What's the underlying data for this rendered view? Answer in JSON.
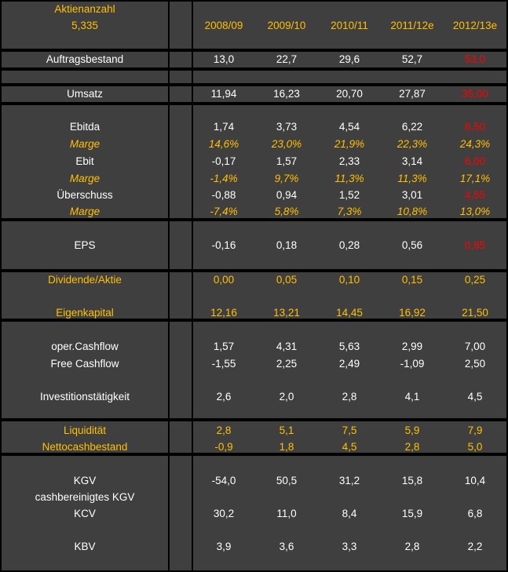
{
  "header": {
    "label": "Aktienanzahl",
    "shares": "5,335",
    "years": [
      "2008/09",
      "2009/10",
      "2010/11",
      "2011/12e",
      "2012/13e"
    ],
    "color": "#ffc000"
  },
  "rows": [
    {
      "label": "Auftragsbestand",
      "values": [
        "13,0",
        "22,7",
        "29,6",
        "52,7",
        "53,0"
      ],
      "color": "#ffffff",
      "last_color": "#ff0000"
    },
    {
      "label": "Umsatz",
      "values": [
        "11,94",
        "16,23",
        "20,70",
        "27,87",
        "35,00"
      ],
      "color": "#ffffff",
      "last_color": "#ff0000"
    },
    {
      "label": "Ebitda",
      "values": [
        "1,74",
        "3,73",
        "4,54",
        "6,22",
        "8,50"
      ],
      "color": "#ffffff",
      "last_color": "#ff0000"
    },
    {
      "label": "Marge",
      "values": [
        "14,6%",
        "23,0%",
        "21,9%",
        "22,3%",
        "24,3%"
      ],
      "color": "#ffc000",
      "italic": true
    },
    {
      "label": "Ebit",
      "values": [
        "-0,17",
        "1,57",
        "2,33",
        "3,14",
        "6,00"
      ],
      "color": "#ffffff",
      "last_color": "#ff0000"
    },
    {
      "label": "Marge",
      "values": [
        "-1,4%",
        "9,7%",
        "11,3%",
        "11,3%",
        "17,1%"
      ],
      "color": "#ffc000",
      "italic": true
    },
    {
      "label": "Überschuss",
      "values": [
        "-0,88",
        "0,94",
        "1,52",
        "3,01",
        "4,55"
      ],
      "color": "#ffffff",
      "last_color": "#ff0000"
    },
    {
      "label": "Marge",
      "values": [
        "-7,4%",
        "5,8%",
        "7,3%",
        "10,8%",
        "13,0%"
      ],
      "color": "#ffc000",
      "italic": true
    },
    {
      "label": "EPS",
      "values": [
        "-0,16",
        "0,18",
        "0,28",
        "0,56",
        "0,85"
      ],
      "color": "#ffffff",
      "last_color": "#ff0000"
    },
    {
      "label": "Dividende/Aktie",
      "values": [
        "0,00",
        "0,05",
        "0,10",
        "0,15",
        "0,25"
      ],
      "color": "#ffc000"
    },
    {
      "label": "Eigenkapital",
      "values": [
        "12,16",
        "13,21",
        "14,45",
        "16,92",
        "21,50"
      ],
      "color": "#ffc000"
    },
    {
      "label": "oper.Cashflow",
      "values": [
        "1,57",
        "4,31",
        "5,63",
        "2,99",
        "7,00"
      ],
      "color": "#ffffff"
    },
    {
      "label": "Free Cashflow",
      "values": [
        "-1,55",
        "2,25",
        "2,49",
        "-1,09",
        "2,50"
      ],
      "color": "#ffffff"
    },
    {
      "label": "Investitionstätigkeit",
      "values": [
        "2,6",
        "2,0",
        "2,8",
        "4,1",
        "4,5"
      ],
      "color": "#ffffff"
    },
    {
      "label": "Liquidität",
      "values": [
        "2,8",
        "5,1",
        "7,5",
        "5,9",
        "7,9"
      ],
      "color": "#ffc000"
    },
    {
      "label": "Nettocashbestand",
      "values": [
        "-0,9",
        "1,8",
        "4,5",
        "2,8",
        "5,0"
      ],
      "color": "#ffc000"
    },
    {
      "label": "KGV",
      "values": [
        "-54,0",
        "50,5",
        "31,2",
        "15,8",
        "10,4"
      ],
      "color": "#ffffff"
    },
    {
      "label": "cashbereinigtes KGV",
      "color": "#ffffff"
    },
    {
      "label": "KCV",
      "values": [
        "30,2",
        "11,0",
        "8,4",
        "15,9",
        "6,8"
      ],
      "color": "#ffffff"
    },
    {
      "label": "KBV",
      "values": [
        "3,9",
        "3,6",
        "3,3",
        "2,8",
        "2,2"
      ],
      "color": "#ffffff"
    }
  ]
}
